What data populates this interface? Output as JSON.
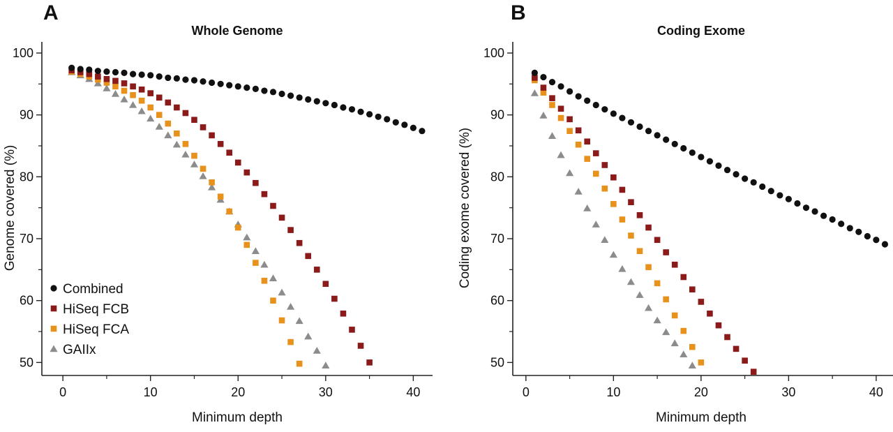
{
  "chart_data": [
    {
      "type": "scatter",
      "panel_label": "A",
      "title": "Whole Genome",
      "xlabel": "Minimum depth",
      "ylabel": "Genome covered (%)",
      "xlim": [
        -2.4,
        42.2
      ],
      "ylim": [
        47.9,
        101.8
      ],
      "xticks": [
        0,
        10,
        20,
        30,
        40
      ],
      "yticks": [
        50,
        60,
        70,
        80,
        90,
        100
      ],
      "grid": false,
      "legend_position": "bottom-left",
      "series": [
        {
          "name": "Combined",
          "marker": "circle",
          "color": "#111111",
          "x_start": 1,
          "values": [
            97.6,
            97.4,
            97.3,
            97.1,
            97.0,
            96.9,
            96.8,
            96.6,
            96.5,
            96.4,
            96.2,
            96.0,
            95.9,
            95.7,
            95.6,
            95.4,
            95.2,
            95.0,
            94.8,
            94.6,
            94.4,
            94.2,
            93.9,
            93.7,
            93.4,
            93.1,
            92.8,
            92.5,
            92.2,
            91.9,
            91.6,
            91.2,
            90.9,
            90.5,
            90.1,
            89.7,
            89.3,
            88.8,
            88.4,
            87.9,
            87.4
          ]
        },
        {
          "name": "HiSeq FCB",
          "marker": "square",
          "color": "#8b1a1a",
          "x_start": 1,
          "values": [
            97.2,
            96.9,
            96.6,
            96.2,
            95.8,
            95.5,
            95.1,
            94.6,
            94.1,
            93.5,
            92.8,
            92.0,
            91.2,
            90.3,
            89.2,
            88.0,
            86.7,
            85.3,
            83.9,
            82.3,
            80.7,
            79.0,
            77.2,
            75.3,
            73.4,
            71.4,
            69.3,
            67.2,
            65.0,
            62.7,
            60.3,
            57.9,
            55.3,
            52.7,
            50.0
          ]
        },
        {
          "name": "HiSeq FCA",
          "marker": "square",
          "color": "#e8921e",
          "x_start": 1,
          "values": [
            97.0,
            96.6,
            96.2,
            95.7,
            95.2,
            94.6,
            93.9,
            93.2,
            92.3,
            91.2,
            90.0,
            88.6,
            87.0,
            85.3,
            83.4,
            81.3,
            79.1,
            76.8,
            74.4,
            71.8,
            69.0,
            66.1,
            63.2,
            60.0,
            56.8,
            53.3,
            49.8
          ]
        },
        {
          "name": "GAIIx",
          "marker": "triangle",
          "color": "#8c8c8c",
          "x_start": 1,
          "values": [
            96.9,
            96.4,
            95.8,
            95.1,
            94.3,
            93.4,
            92.5,
            91.6,
            90.6,
            89.4,
            88.1,
            86.7,
            85.2,
            83.6,
            82.0,
            80.1,
            78.3,
            76.3,
            74.4,
            72.3,
            70.2,
            68.0,
            65.8,
            63.6,
            61.3,
            59.0,
            56.7,
            54.2,
            51.9,
            49.5
          ]
        }
      ]
    },
    {
      "type": "scatter",
      "panel_label": "B",
      "title": "Coding Exome",
      "xlabel": "Minimum depth",
      "ylabel": "Coding exome covered (%)",
      "xlim": [
        -1.5,
        42.0
      ],
      "ylim": [
        47.9,
        101.8
      ],
      "xticks": [
        0,
        10,
        20,
        30,
        40
      ],
      "yticks": [
        50,
        60,
        70,
        80,
        90,
        100
      ],
      "grid": false,
      "series": [
        {
          "name": "Combined",
          "marker": "circle",
          "color": "#111111",
          "x_start": 1,
          "values": [
            96.8,
            96.1,
            95.3,
            94.6,
            93.8,
            93.0,
            92.3,
            91.6,
            90.9,
            90.2,
            89.5,
            88.8,
            88.1,
            87.4,
            86.7,
            86.0,
            85.3,
            84.6,
            83.9,
            83.2,
            82.5,
            81.8,
            81.1,
            80.4,
            79.7,
            79.1,
            78.4,
            77.7,
            77.0,
            76.4,
            75.7,
            75.0,
            74.4,
            73.7,
            73.1,
            72.4,
            71.7,
            71.1,
            70.4,
            69.8,
            69.1
          ]
        },
        {
          "name": "HiSeq FCB",
          "marker": "square",
          "color": "#8b1a1a",
          "x_start": 1,
          "values": [
            96.0,
            94.4,
            92.7,
            91.0,
            89.3,
            87.5,
            85.7,
            83.8,
            81.9,
            79.9,
            77.9,
            75.9,
            73.8,
            71.8,
            69.8,
            67.8,
            65.8,
            63.8,
            61.8,
            59.8,
            57.9,
            56.0,
            54.1,
            52.2,
            50.3,
            48.5
          ]
        },
        {
          "name": "HiSeq FCA",
          "marker": "square",
          "color": "#e8921e",
          "x_start": 1,
          "values": [
            95.6,
            93.6,
            91.6,
            89.5,
            87.4,
            85.2,
            82.9,
            80.5,
            78.1,
            75.6,
            73.1,
            70.5,
            68.0,
            65.4,
            62.8,
            60.2,
            57.6,
            55.1,
            52.5,
            50.0
          ]
        },
        {
          "name": "GAIIx",
          "marker": "triangle",
          "color": "#8c8c8c",
          "x_start": 1,
          "values": [
            93.5,
            89.9,
            86.6,
            83.5,
            80.6,
            77.6,
            74.9,
            72.3,
            69.8,
            67.4,
            65.1,
            63.0,
            60.9,
            58.8,
            56.8,
            54.9,
            53.1,
            51.3,
            49.5
          ]
        }
      ]
    }
  ]
}
